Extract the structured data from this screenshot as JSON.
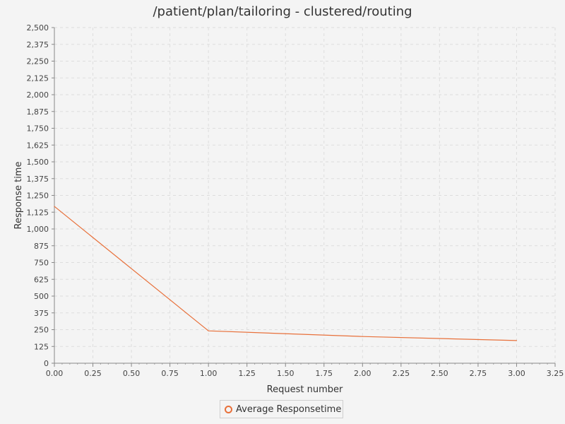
{
  "chart_data": {
    "type": "line",
    "title": "/patient/plan/tailoring - clustered/routing",
    "xlabel": "Request number",
    "ylabel": "Response time",
    "xlim": [
      0,
      3.25
    ],
    "ylim": [
      0,
      2500
    ],
    "x_ticks": [
      "0.00",
      "0.25",
      "0.50",
      "0.75",
      "1.00",
      "1.25",
      "1.50",
      "1.75",
      "2.00",
      "2.25",
      "2.50",
      "2.75",
      "3.00",
      "3.25"
    ],
    "y_ticks": [
      "0",
      "125",
      "250",
      "375",
      "500",
      "625",
      "750",
      "875",
      "1,000",
      "1,125",
      "1,250",
      "1,375",
      "1,500",
      "1,625",
      "1,750",
      "1,875",
      "2,000",
      "2,125",
      "2,250",
      "2,375",
      "2,500"
    ],
    "grid": true,
    "legend_position": "bottom",
    "series": [
      {
        "name": "Average Responsetime",
        "color": "#e8703a",
        "x": [
          0,
          1,
          2,
          3
        ],
        "y": [
          1168,
          241,
          199,
          169
        ]
      }
    ]
  }
}
